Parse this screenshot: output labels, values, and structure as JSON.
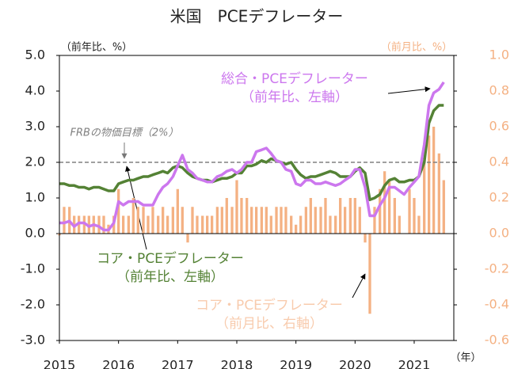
{
  "chart_data": {
    "type": "line",
    "title": "米国　PCEデフレーター",
    "y_label": "（前年比、%）",
    "y2_label": "（前月比、%）",
    "x_label": "（年）",
    "x": [
      2015,
      2015.08,
      2015.17,
      2015.25,
      2015.33,
      2015.42,
      2015.5,
      2015.58,
      2015.67,
      2015.75,
      2015.83,
      2015.92,
      2016,
      2016.08,
      2016.17,
      2016.25,
      2016.33,
      2016.42,
      2016.5,
      2016.58,
      2016.67,
      2016.75,
      2016.83,
      2016.92,
      2017,
      2017.08,
      2017.17,
      2017.25,
      2017.33,
      2017.42,
      2017.5,
      2017.58,
      2017.67,
      2017.75,
      2017.83,
      2017.92,
      2018,
      2018.08,
      2018.17,
      2018.25,
      2018.33,
      2018.42,
      2018.5,
      2018.58,
      2018.67,
      2018.75,
      2018.83,
      2018.92,
      2019,
      2019.08,
      2019.17,
      2019.25,
      2019.33,
      2019.42,
      2019.5,
      2019.58,
      2019.67,
      2019.75,
      2019.83,
      2019.92,
      2020,
      2020.08,
      2020.17,
      2020.25,
      2020.33,
      2020.42,
      2020.5,
      2020.58,
      2020.67,
      2020.75,
      2020.83,
      2020.92,
      2021,
      2021.08,
      2021.17,
      2021.25,
      2021.33,
      2021.42,
      2021.5
    ],
    "series": [
      {
        "name": "コア・PCEデフレーター（前月比、右軸）",
        "kind": "bar",
        "axis": "y2",
        "color": "#f4b183",
        "values": [
          -0.01,
          0.15,
          0.15,
          0.1,
          0.1,
          0.1,
          0.1,
          0.1,
          0.1,
          0.1,
          0.05,
          0.1,
          0.25,
          0.1,
          0.1,
          0.2,
          0.15,
          0.15,
          0.1,
          0.15,
          0.1,
          0.15,
          0.1,
          0.15,
          0.25,
          0.15,
          -0.05,
          0.15,
          0.1,
          0.1,
          0.1,
          0.1,
          0.15,
          0.15,
          0.2,
          0.15,
          0.3,
          0.2,
          0.2,
          0.15,
          0.15,
          0.15,
          0.15,
          0.1,
          0.15,
          0.15,
          0.15,
          0.1,
          0.05,
          0.1,
          0.15,
          0.2,
          0.15,
          0.15,
          0.2,
          0.1,
          0.1,
          0.2,
          0.15,
          0.2,
          0.2,
          0.15,
          -0.05,
          -0.45,
          0.15,
          0.25,
          0.35,
          0.3,
          0.2,
          0.1,
          0.0,
          0.25,
          0.2,
          0.1,
          0.4,
          0.55,
          0.6,
          0.45,
          0.3
        ]
      },
      {
        "name": "コア・PCEデフレーター（前年比、左軸）",
        "kind": "line",
        "color": "#548235",
        "values": [
          1.4,
          1.4,
          1.35,
          1.35,
          1.3,
          1.3,
          1.25,
          1.3,
          1.3,
          1.25,
          1.2,
          1.2,
          1.4,
          1.45,
          1.5,
          1.5,
          1.55,
          1.6,
          1.6,
          1.65,
          1.7,
          1.75,
          1.7,
          1.85,
          1.9,
          1.85,
          1.7,
          1.6,
          1.55,
          1.5,
          1.5,
          1.45,
          1.5,
          1.55,
          1.55,
          1.6,
          1.7,
          1.7,
          1.9,
          1.9,
          1.95,
          2.05,
          2.0,
          2.1,
          2.05,
          2.0,
          1.95,
          2.0,
          1.8,
          1.65,
          1.55,
          1.6,
          1.6,
          1.65,
          1.7,
          1.75,
          1.7,
          1.6,
          1.6,
          1.6,
          1.75,
          1.85,
          1.7,
          0.95,
          1.0,
          1.1,
          1.35,
          1.5,
          1.55,
          1.45,
          1.45,
          1.5,
          1.5,
          1.6,
          2.0,
          3.1,
          3.45,
          3.6,
          3.6
        ]
      },
      {
        "name": "総合・PCEデフレーター（前年比、左軸）",
        "kind": "line",
        "color": "#cc77ee",
        "values": [
          0.3,
          0.3,
          0.35,
          0.2,
          0.3,
          0.3,
          0.2,
          0.25,
          0.2,
          0.1,
          0.1,
          0.3,
          0.9,
          0.8,
          0.9,
          0.9,
          0.9,
          0.8,
          0.8,
          0.8,
          1.1,
          1.3,
          1.4,
          1.6,
          1.9,
          2.2,
          1.8,
          1.7,
          1.55,
          1.5,
          1.45,
          1.45,
          1.6,
          1.65,
          1.75,
          1.8,
          1.7,
          1.8,
          2.0,
          2.0,
          2.3,
          2.35,
          2.4,
          2.25,
          2.05,
          2.0,
          1.8,
          1.75,
          1.4,
          1.35,
          1.5,
          1.5,
          1.4,
          1.4,
          1.45,
          1.4,
          1.35,
          1.4,
          1.5,
          1.6,
          1.8,
          1.8,
          1.3,
          0.5,
          0.5,
          0.8,
          1.0,
          1.3,
          1.3,
          1.2,
          1.1,
          1.3,
          1.45,
          1.6,
          2.5,
          3.6,
          3.95,
          4.05,
          4.25
        ]
      }
    ],
    "xlim": [
      2015,
      2021.67
    ],
    "xticks": [
      2015,
      2016,
      2017,
      2018,
      2019,
      2020,
      2021
    ],
    "ylim": [
      -3,
      5
    ],
    "yticks": [
      {
        "value": 5,
        "label": "5.0"
      },
      {
        "value": 4,
        "label": "4.0"
      },
      {
        "value": 3,
        "label": "3.0"
      },
      {
        "value": 2,
        "label": "2.0"
      },
      {
        "value": 1,
        "label": "1.0"
      },
      {
        "value": 0,
        "label": "0.0"
      },
      {
        "value": -1,
        "label": "-1.0"
      },
      {
        "value": -2,
        "label": "-2.0"
      },
      {
        "value": -3,
        "label": "-3.0"
      }
    ],
    "y2lim": [
      -0.6,
      1.0
    ],
    "y2ticks": [
      {
        "value": 1,
        "label": "1.0"
      },
      0.8,
      0.6,
      0.4,
      0.2,
      {
        "value": 0,
        "label": "0.0"
      },
      -0.2,
      -0.4,
      -0.6
    ],
    "y2_color": "#f4b183",
    "reference_line": {
      "value": 2,
      "label": "FRBの物価目標（2%）"
    },
    "annotations": [
      {
        "lines": [
          "総合・PCEデフレーター",
          "（前年比、左軸）"
        ],
        "color": "#cc77ee"
      },
      {
        "lines": [
          "コア・PCEデフレーター",
          "（前年比、左軸）"
        ],
        "color": "#548235"
      },
      {
        "lines": [
          "コア・PCEデフレーター",
          "（前月比、右軸）"
        ],
        "color": "#f8cbad"
      }
    ],
    "grid": false
  }
}
